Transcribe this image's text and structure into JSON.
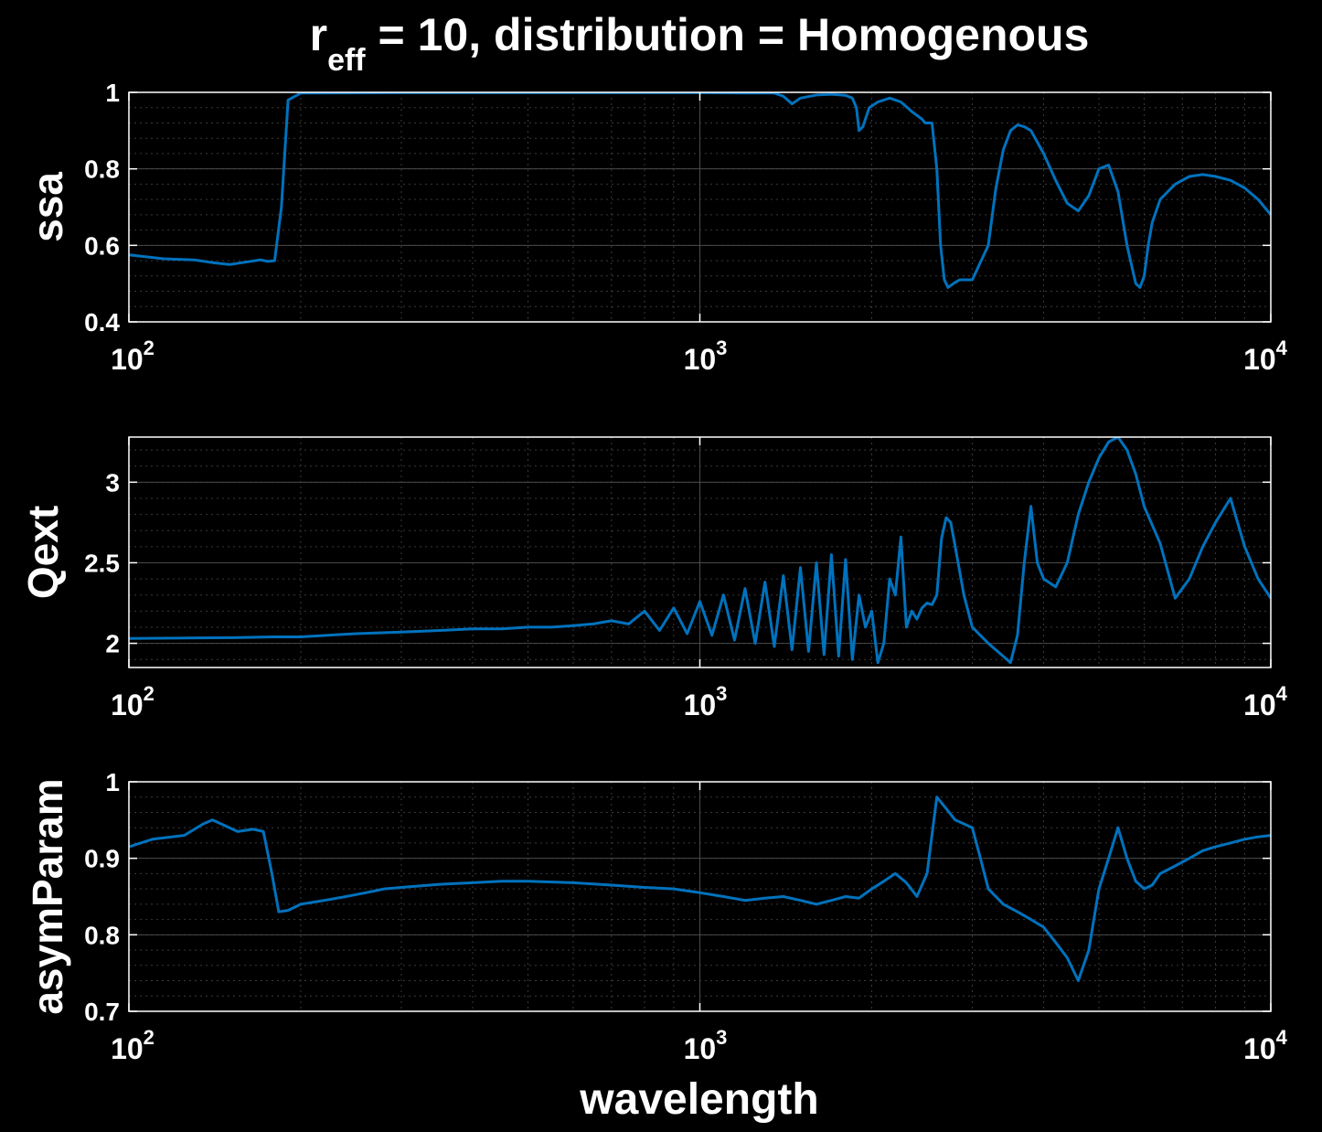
{
  "figure": {
    "title_main": "r",
    "title_sub": "eff",
    "title_rest": " = 10, distribution = Homogenous",
    "xlabel": "wavelength",
    "line_color": "#0072BD",
    "grid_color": "#3a3a3a",
    "background": "#000000",
    "axes_color": "#ffffff"
  },
  "chart_data": [
    {
      "type": "line",
      "ylabel": "ssa",
      "xscale": "log",
      "xlim": [
        100,
        10000
      ],
      "ylim": [
        0.4,
        1.0
      ],
      "yticks": [
        0.4,
        0.6,
        0.8,
        1.0
      ],
      "ytick_labels": [
        "0.4",
        "0.6",
        "0.8",
        "1"
      ],
      "xticks": [
        100,
        1000,
        10000
      ],
      "xtick_labels": [
        {
          "base": "10",
          "exp": "2"
        },
        {
          "base": "10",
          "exp": "3"
        },
        {
          "base": "10",
          "exp": "4"
        }
      ],
      "grid": "on (major and minor)",
      "series": [
        {
          "x": [
            100,
            115,
            130,
            140,
            150,
            160,
            170,
            175,
            180,
            185,
            190,
            200,
            300,
            500,
            800,
            1000,
            1200,
            1350,
            1400,
            1450,
            1500,
            1600,
            1700,
            1800,
            1850,
            1880,
            1900,
            1930,
            1980,
            2050,
            2150,
            2250,
            2350,
            2450,
            2480,
            2550,
            2600,
            2640,
            2680,
            2720,
            2780,
            2850,
            3000,
            3200,
            3300,
            3400,
            3500,
            3600,
            3700,
            3800,
            3900,
            4000,
            4200,
            4400,
            4600,
            4800,
            5000,
            5200,
            5400,
            5600,
            5800,
            5900,
            6000,
            6100,
            6200,
            6400,
            6800,
            7200,
            7600,
            8000,
            8500,
            9000,
            9500,
            10000
          ],
          "y": [
            0.575,
            0.565,
            0.562,
            0.555,
            0.55,
            0.556,
            0.562,
            0.558,
            0.56,
            0.7,
            0.98,
            0.998,
            0.999,
            0.999,
            0.999,
            0.999,
            0.998,
            0.998,
            0.99,
            0.97,
            0.985,
            0.993,
            0.995,
            0.992,
            0.985,
            0.96,
            0.9,
            0.91,
            0.96,
            0.975,
            0.985,
            0.975,
            0.95,
            0.93,
            0.92,
            0.92,
            0.8,
            0.6,
            0.51,
            0.49,
            0.5,
            0.51,
            0.51,
            0.6,
            0.75,
            0.85,
            0.9,
            0.915,
            0.91,
            0.9,
            0.87,
            0.84,
            0.77,
            0.71,
            0.69,
            0.73,
            0.8,
            0.81,
            0.74,
            0.6,
            0.5,
            0.49,
            0.52,
            0.6,
            0.66,
            0.72,
            0.76,
            0.78,
            0.785,
            0.78,
            0.77,
            0.75,
            0.72,
            0.68
          ]
        }
      ]
    },
    {
      "type": "line",
      "ylabel": "Qext",
      "xscale": "log",
      "xlim": [
        100,
        10000
      ],
      "ylim": [
        1.85,
        3.28
      ],
      "yticks": [
        2,
        2.5,
        3
      ],
      "ytick_labels": [
        "2",
        "2.5",
        "3"
      ],
      "xticks": [
        100,
        1000,
        10000
      ],
      "xtick_labels": [
        {
          "base": "10",
          "exp": "2"
        },
        {
          "base": "10",
          "exp": "3"
        },
        {
          "base": "10",
          "exp": "4"
        }
      ],
      "grid": "on (major and minor)",
      "series": [
        {
          "x": [
            100,
            150,
            180,
            200,
            250,
            300,
            350,
            400,
            450,
            500,
            550,
            600,
            650,
            700,
            750,
            800,
            850,
            900,
            950,
            1000,
            1050,
            1100,
            1150,
            1200,
            1250,
            1300,
            1350,
            1400,
            1450,
            1500,
            1550,
            1600,
            1650,
            1700,
            1750,
            1800,
            1850,
            1900,
            1950,
            2000,
            2050,
            2100,
            2150,
            2200,
            2250,
            2300,
            2350,
            2400,
            2450,
            2500,
            2550,
            2600,
            2650,
            2700,
            2750,
            2800,
            2900,
            3000,
            3200,
            3400,
            3500,
            3600,
            3700,
            3800,
            3900,
            4000,
            4200,
            4400,
            4600,
            4800,
            5000,
            5200,
            5400,
            5600,
            5800,
            6000,
            6400,
            6800,
            7200,
            7600,
            8000,
            8500,
            9000,
            9500,
            10000
          ],
          "y": [
            2.03,
            2.035,
            2.04,
            2.04,
            2.06,
            2.07,
            2.08,
            2.09,
            2.09,
            2.1,
            2.1,
            2.11,
            2.12,
            2.14,
            2.12,
            2.2,
            2.08,
            2.22,
            2.06,
            2.26,
            2.05,
            2.3,
            2.02,
            2.34,
            2.0,
            2.38,
            1.98,
            2.42,
            1.96,
            2.47,
            1.95,
            2.5,
            1.93,
            2.55,
            1.92,
            2.52,
            1.9,
            2.3,
            2.1,
            2.2,
            1.88,
            2.0,
            2.4,
            2.3,
            2.66,
            2.1,
            2.2,
            2.15,
            2.22,
            2.25,
            2.24,
            2.3,
            2.65,
            2.78,
            2.75,
            2.6,
            2.3,
            2.1,
            2.0,
            1.92,
            1.88,
            2.05,
            2.5,
            2.85,
            2.5,
            2.4,
            2.35,
            2.5,
            2.8,
            3.0,
            3.15,
            3.25,
            3.28,
            3.2,
            3.05,
            2.85,
            2.62,
            2.28,
            2.4,
            2.6,
            2.75,
            2.9,
            2.6,
            2.4,
            2.28
          ]
        }
      ]
    },
    {
      "type": "line",
      "ylabel": "asymParam",
      "xscale": "log",
      "xlim": [
        100,
        10000
      ],
      "ylim": [
        0.7,
        1.0
      ],
      "yticks": [
        0.7,
        0.8,
        0.9,
        1.0
      ],
      "ytick_labels": [
        "0.7",
        "0.8",
        "0.9",
        "1"
      ],
      "xticks": [
        100,
        1000,
        10000
      ],
      "xtick_labels": [
        {
          "base": "10",
          "exp": "2"
        },
        {
          "base": "10",
          "exp": "3"
        },
        {
          "base": "10",
          "exp": "4"
        }
      ],
      "grid": "on (major and minor)",
      "series": [
        {
          "x": [
            100,
            110,
            125,
            135,
            140,
            145,
            155,
            165,
            172,
            178,
            183,
            190,
            200,
            220,
            240,
            260,
            280,
            300,
            350,
            400,
            450,
            500,
            600,
            700,
            800,
            900,
            1000,
            1100,
            1200,
            1300,
            1400,
            1500,
            1600,
            1700,
            1800,
            1900,
            2000,
            2100,
            2200,
            2300,
            2400,
            2500,
            2600,
            2700,
            2800,
            2900,
            3000,
            3100,
            3200,
            3400,
            3600,
            3800,
            4000,
            4200,
            4400,
            4600,
            4800,
            5000,
            5200,
            5400,
            5600,
            5800,
            6000,
            6200,
            6400,
            6800,
            7200,
            7600,
            8000,
            8500,
            9000,
            9500,
            10000
          ],
          "y": [
            0.915,
            0.925,
            0.93,
            0.945,
            0.95,
            0.945,
            0.935,
            0.938,
            0.935,
            0.88,
            0.83,
            0.832,
            0.84,
            0.845,
            0.85,
            0.855,
            0.86,
            0.862,
            0.866,
            0.868,
            0.87,
            0.87,
            0.868,
            0.865,
            0.862,
            0.86,
            0.855,
            0.85,
            0.845,
            0.848,
            0.85,
            0.845,
            0.84,
            0.845,
            0.85,
            0.848,
            0.86,
            0.87,
            0.88,
            0.868,
            0.85,
            0.88,
            0.98,
            0.965,
            0.95,
            0.945,
            0.94,
            0.9,
            0.86,
            0.84,
            0.83,
            0.82,
            0.81,
            0.79,
            0.77,
            0.74,
            0.78,
            0.86,
            0.9,
            0.94,
            0.9,
            0.87,
            0.86,
            0.865,
            0.88,
            0.89,
            0.9,
            0.91,
            0.915,
            0.92,
            0.925,
            0.928,
            0.93
          ]
        }
      ]
    }
  ]
}
